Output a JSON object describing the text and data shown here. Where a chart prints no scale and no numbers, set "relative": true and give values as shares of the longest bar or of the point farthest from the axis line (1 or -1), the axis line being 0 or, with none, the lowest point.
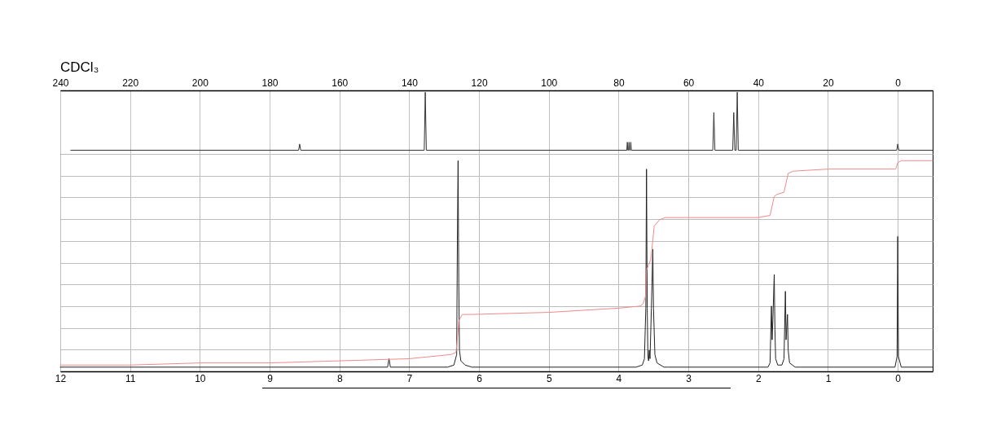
{
  "chart_data": [
    {
      "type": "line",
      "title": "CDCl₃",
      "xlim": [
        240,
        -10
      ],
      "xticks": [
        240,
        220,
        200,
        180,
        160,
        140,
        120,
        100,
        80,
        60,
        40,
        20,
        0
      ],
      "relative": true,
      "grid": "x",
      "tick_labels": "x",
      "series": [
        {
          "color": "#333333",
          "x": [
            237,
            171.7,
            171.4,
            171.1,
            135.7,
            135.4,
            135.1,
            77.65,
            77.5,
            77.35,
            77.15,
            77.0,
            76.85,
            76.65,
            76.5,
            76.35,
            53.0,
            52.7,
            52.4,
            47.3,
            47.0,
            46.7,
            46.3,
            46.0,
            45.7,
            0.3,
            0,
            -0.3,
            -10
          ],
          "values": [
            0.06,
            0.06,
            0.16,
            0.06,
            0.06,
            1,
            0.06,
            0.06,
            0.19,
            0.06,
            0.06,
            0.19,
            0.06,
            0.06,
            0.19,
            0.06,
            0.06,
            0.67,
            0.06,
            0.06,
            0.67,
            0.06,
            0.06,
            1,
            0.06,
            0.06,
            0.16,
            0.06,
            0.06
          ]
        }
      ]
    },
    {
      "type": "line",
      "xlim": [
        12,
        -0.5
      ],
      "xticks": [
        12,
        11,
        10,
        9,
        8,
        7,
        6,
        5,
        4,
        3,
        2,
        1,
        0
      ],
      "relative": true,
      "grid": true,
      "tick_labels": "x",
      "series": [
        {
          "color": "#222222",
          "x": [
            12,
            7.31,
            7.29,
            7.27,
            6.45,
            6.36,
            6.32,
            6.31,
            6.3,
            6.29,
            6.28,
            6.26,
            6.2,
            6.1,
            3.75,
            3.66,
            3.63,
            3.61,
            3.6,
            3.59,
            3.58,
            3.57,
            3.56,
            3.55,
            3.53,
            3.51,
            3.5,
            3.48,
            3.45,
            3.35,
            3.3,
            1.86,
            1.83,
            1.81,
            1.8,
            1.79,
            1.77,
            1.76,
            1.75,
            1.72,
            1.66,
            1.63,
            1.61,
            1.6,
            1.58,
            1.57,
            1.55,
            1.47,
            1.4,
            0.04,
            0.01,
            0,
            -0.01,
            -0.05,
            -0.5
          ],
          "values": [
            0.02,
            0.02,
            0.06,
            0.02,
            0.02,
            0.03,
            0.08,
            0.62,
            1,
            0.42,
            0.1,
            0.05,
            0.03,
            0.02,
            0.02,
            0.03,
            0.06,
            0.3,
            0.96,
            0.3,
            0.07,
            0.05,
            0.1,
            0.06,
            0.3,
            0.58,
            0.3,
            0.08,
            0.04,
            0.02,
            0.02,
            0.02,
            0.04,
            0.31,
            0.15,
            0.24,
            0.46,
            0.2,
            0.06,
            0.03,
            0.03,
            0.06,
            0.38,
            0.15,
            0.27,
            0.1,
            0.04,
            0.02,
            0.02,
            0.02,
            0.07,
            0.64,
            0.07,
            0.02,
            0.02
          ]
        },
        {
          "color": "#f08a8a",
          "x": [
            12,
            11,
            10,
            9,
            8,
            7,
            6.4,
            6.33,
            6.3,
            6.29,
            6.24,
            6.12,
            5,
            4,
            3.69,
            3.65,
            3.61,
            3.6,
            3.54,
            3.51,
            3.49,
            3.41,
            3.33,
            3,
            2,
            1.83,
            1.77,
            1.73,
            1.63,
            1.57,
            1.5,
            1,
            0.03,
            0,
            -0.05,
            -0.5
          ],
          "values": [
            0.03,
            0.03,
            0.04,
            0.04,
            0.05,
            0.06,
            0.08,
            0.09,
            0.19,
            0.24,
            0.27,
            0.27,
            0.28,
            0.3,
            0.31,
            0.32,
            0.36,
            0.48,
            0.53,
            0.62,
            0.69,
            0.72,
            0.73,
            0.73,
            0.73,
            0.74,
            0.83,
            0.84,
            0.85,
            0.94,
            0.95,
            0.96,
            0.96,
            0.99,
            1,
            1
          ]
        }
      ]
    }
  ]
}
